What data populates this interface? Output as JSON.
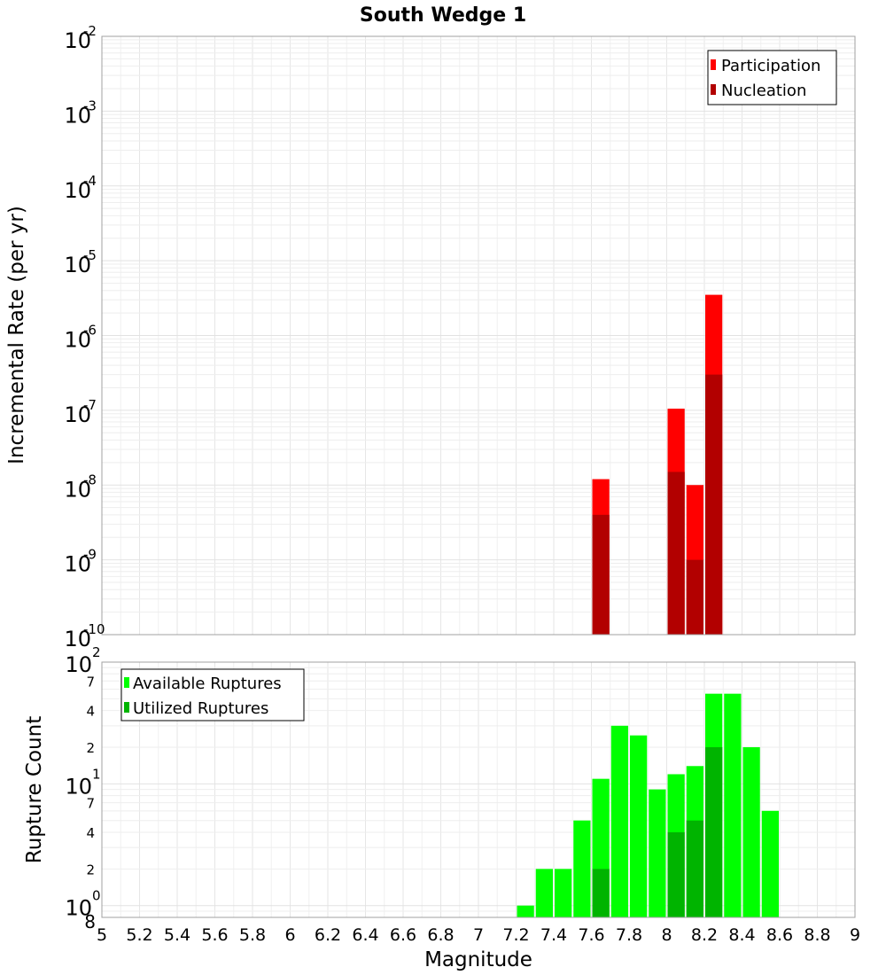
{
  "chart_data": [
    {
      "type": "bar",
      "title": "South Wedge 1",
      "xlabel": "",
      "ylabel": "Incremental Rate (per yr)",
      "y_scale": "log",
      "ylim": [
        1e-10,
        0.01
      ],
      "xlim": [
        5,
        9
      ],
      "grid": true,
      "legend_position": "top-right",
      "y_tick_labels": [
        {
          "base": "10",
          "exp": "-2"
        },
        {
          "base": "10",
          "exp": "-3"
        },
        {
          "base": "10",
          "exp": "-4"
        },
        {
          "base": "10",
          "exp": "-5"
        },
        {
          "base": "10",
          "exp": "-6"
        },
        {
          "base": "10",
          "exp": "-7"
        },
        {
          "base": "10",
          "exp": "-8"
        },
        {
          "base": "10",
          "exp": "-9"
        },
        {
          "base": "10",
          "exp": "-10"
        }
      ],
      "series": [
        {
          "name": "Participation",
          "color": "#ff0000",
          "x": [
            7.65,
            8.05,
            8.15,
            8.25
          ],
          "values": [
            1.2e-08,
            1.05e-07,
            1e-08,
            3.5e-06
          ]
        },
        {
          "name": "Nucleation",
          "color": "#b20000",
          "x": [
            7.65,
            8.05,
            8.15,
            8.25
          ],
          "values": [
            4e-09,
            1.5e-08,
            1e-09,
            3e-07
          ]
        }
      ]
    },
    {
      "type": "bar",
      "title": "",
      "xlabel": "Magnitude",
      "ylabel": "Rupture Count",
      "y_scale": "log",
      "ylim": [
        0.8,
        100
      ],
      "xlim": [
        5,
        9
      ],
      "grid": true,
      "legend_position": "top-left",
      "x_tick_labels": [
        "5",
        "5.2",
        "5.4",
        "5.6",
        "5.8",
        "6",
        "6.2",
        "6.4",
        "6.6",
        "6.8",
        "7",
        "7.2",
        "7.4",
        "7.6",
        "7.8",
        "8",
        "8.2",
        "8.4",
        "8.6",
        "8.8",
        "9"
      ],
      "y_major_labels": [
        {
          "base": "10",
          "exp": "2"
        },
        {
          "base": "10",
          "exp": "1"
        },
        {
          "base": "10",
          "exp": "0"
        }
      ],
      "y_minor_labels": [
        "7",
        "4",
        "2",
        "7",
        "4",
        "2",
        "8"
      ],
      "series": [
        {
          "name": "Available Ruptures",
          "color": "#00ff00",
          "x": [
            7.25,
            7.35,
            7.45,
            7.55,
            7.65,
            7.75,
            7.85,
            7.95,
            8.05,
            8.15,
            8.25,
            8.35,
            8.45,
            8.55
          ],
          "values": [
            1,
            2,
            2,
            5,
            11,
            30,
            25,
            9,
            12,
            14,
            55,
            55,
            20,
            6
          ]
        },
        {
          "name": "Utilized Ruptures",
          "color": "#00b400",
          "x": [
            7.65,
            8.05,
            8.15,
            8.25
          ],
          "values": [
            2,
            4,
            5,
            20
          ]
        }
      ]
    }
  ]
}
